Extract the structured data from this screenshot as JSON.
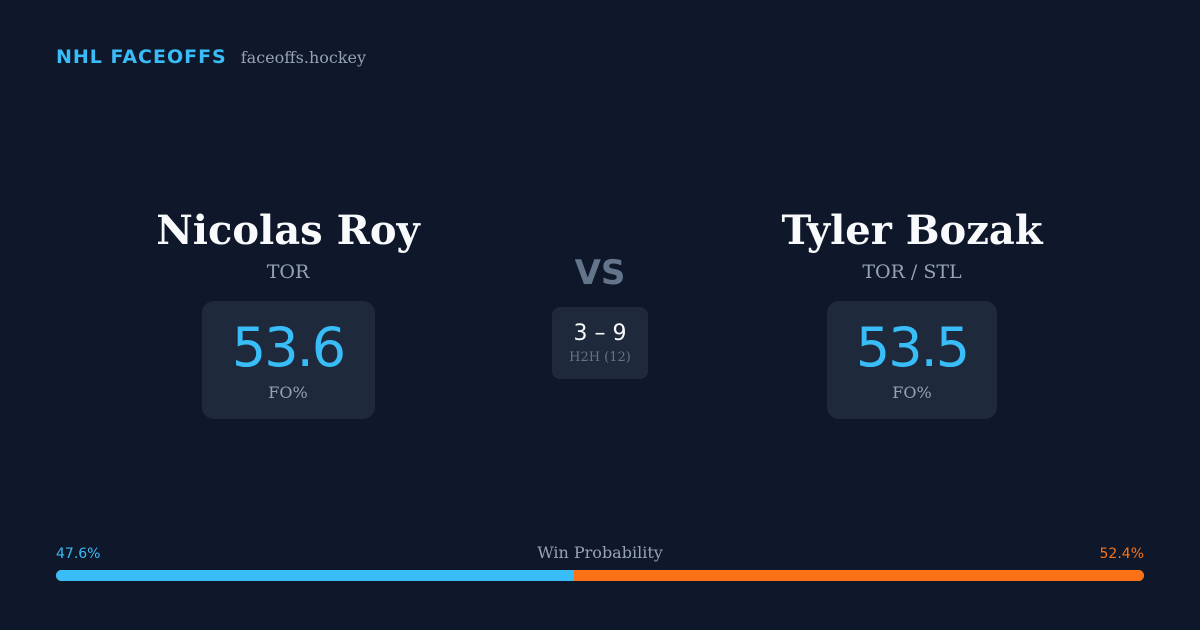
{
  "brand": {
    "name": "NHL FACEOFFS",
    "domain": "faceoffs.hockey"
  },
  "player_left": {
    "name": "Nicolas Roy",
    "team": "TOR",
    "stat_value": "53.6",
    "stat_label": "FO%"
  },
  "player_right": {
    "name": "Tyler Bozak",
    "team": "TOR / STL",
    "stat_value": "53.5",
    "stat_label": "FO%"
  },
  "versus": {
    "label": "VS",
    "score": "3 – 9",
    "h2h_label": "H2H (12)"
  },
  "win_probability": {
    "title": "Win Probability",
    "left_label": "47.6%",
    "right_label": "52.4%",
    "left_value": 47.6,
    "right_value": 52.4,
    "left_color": "#38bdf8",
    "right_color": "#f97316"
  }
}
